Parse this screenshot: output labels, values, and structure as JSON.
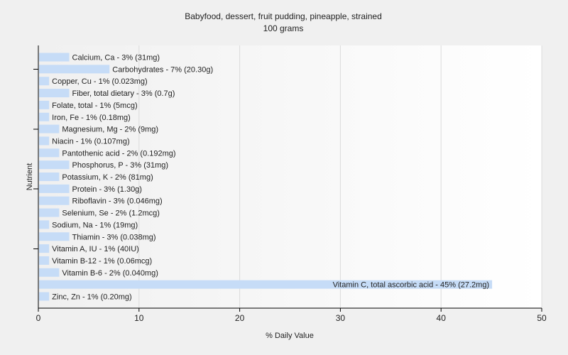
{
  "chart_data": {
    "type": "bar",
    "orientation": "horizontal",
    "title": "Babyfood, dessert, fruit pudding, pineapple, strained",
    "subtitle": "100 grams",
    "xlabel": "% Daily Value",
    "ylabel": "Nutrient",
    "xlim": [
      0,
      50
    ],
    "xticks": [
      0,
      10,
      20,
      30,
      40,
      50
    ],
    "grid": true,
    "bar_color": "#c6dcf7",
    "categories": [
      "Calcium, Ca",
      "Carbohydrates",
      "Copper, Cu",
      "Fiber, total dietary",
      "Folate, total",
      "Iron, Fe",
      "Magnesium, Mg",
      "Niacin",
      "Pantothenic acid",
      "Phosphorus, P",
      "Potassium, K",
      "Protein",
      "Riboflavin",
      "Selenium, Se",
      "Sodium, Na",
      "Thiamin",
      "Vitamin A, IU",
      "Vitamin B-12",
      "Vitamin B-6",
      "Vitamin C, total ascorbic acid",
      "Zinc, Zn"
    ],
    "values": [
      3,
      7,
      1,
      3,
      1,
      1,
      2,
      1,
      2,
      3,
      2,
      3,
      3,
      2,
      1,
      3,
      1,
      1,
      2,
      45,
      1
    ],
    "labels": [
      "Calcium, Ca - 3% (31mg)",
      "Carbohydrates - 7% (20.30g)",
      "Copper, Cu - 1% (0.023mg)",
      "Fiber, total dietary - 3% (0.7g)",
      "Folate, total - 1% (5mcg)",
      "Iron, Fe - 1% (0.18mg)",
      "Magnesium, Mg - 2% (9mg)",
      "Niacin - 1% (0.107mg)",
      "Pantothenic acid - 2% (0.192mg)",
      "Phosphorus, P - 3% (31mg)",
      "Potassium, K - 2% (81mg)",
      "Protein - 3% (1.30g)",
      "Riboflavin - 3% (0.046mg)",
      "Selenium, Se - 2% (1.2mcg)",
      "Sodium, Na - 1% (19mg)",
      "Thiamin - 3% (0.038mg)",
      "Vitamin A, IU - 1% (40IU)",
      "Vitamin B-12 - 1% (0.06mcg)",
      "Vitamin B-6 - 2% (0.040mg)",
      "Vitamin C, total ascorbic acid - 45% (27.2mg)",
      "Zinc, Zn - 1% (0.20mg)"
    ]
  }
}
